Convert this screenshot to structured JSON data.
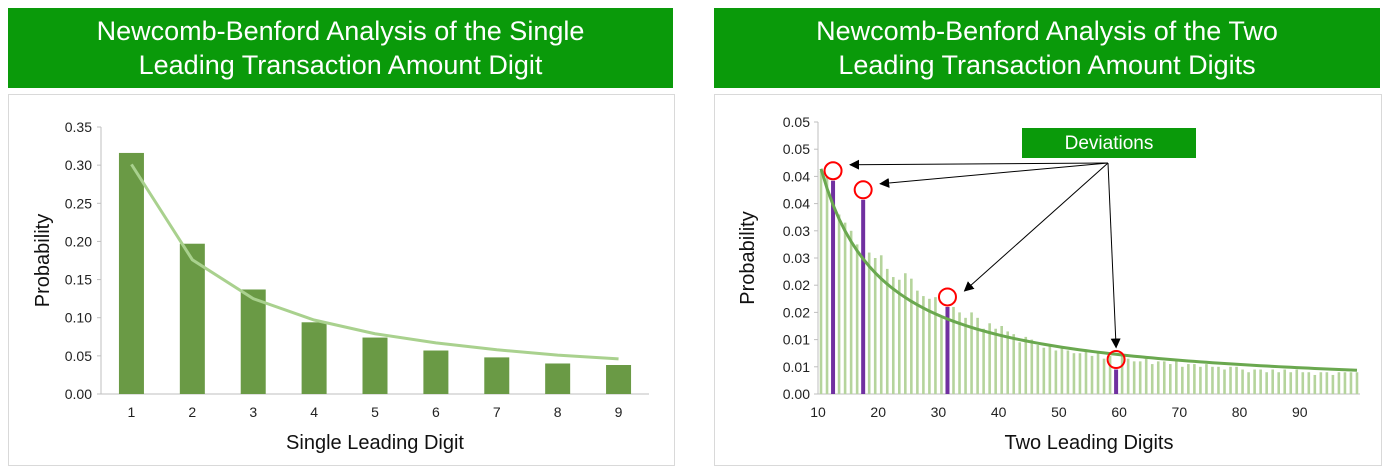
{
  "left_title": [
    "Newcomb-Benford Analysis of the Single",
    "Leading Transaction Amount Digit"
  ],
  "right_title": [
    "Newcomb-Benford Analysis of the Two",
    "Leading Transaction Amount Digits"
  ],
  "colors": {
    "banner": "#0a9a0a",
    "bar_dark": "#6a9a45",
    "bar_light": "#b5d49c",
    "benford_curve_left": "#a9d18e",
    "benford_curve_right": "#6aa84f",
    "deviation_bar": "#7030a0",
    "deviation_circle": "#ff0000"
  },
  "chart_data": [
    {
      "type": "bar",
      "xlabel": "Single Leading Digit",
      "ylabel": "Probability",
      "ylim": [
        0,
        0.35
      ],
      "yticks": [
        "0.00",
        "0.05",
        "0.10",
        "0.15",
        "0.20",
        "0.25",
        "0.30",
        "0.35"
      ],
      "categories": [
        "1",
        "2",
        "3",
        "4",
        "5",
        "6",
        "7",
        "8",
        "9"
      ],
      "series": [
        {
          "kind": "bar",
          "values": [
            0.316,
            0.197,
            0.137,
            0.094,
            0.074,
            0.057,
            0.048,
            0.04,
            0.038
          ]
        },
        {
          "kind": "line",
          "values": [
            0.301,
            0.176,
            0.125,
            0.097,
            0.079,
            0.067,
            0.058,
            0.051,
            0.046
          ]
        }
      ],
      "grid": false,
      "legend": "none"
    },
    {
      "type": "bar",
      "xlabel": "Two Leading Digits",
      "ylabel": "Probability",
      "ylim": [
        0,
        0.05
      ],
      "ytick_values": [
        0,
        0.005,
        0.01,
        0.015,
        0.02,
        0.025,
        0.03,
        0.035,
        0.04,
        0.045,
        0.05
      ],
      "yticks": [
        "0.00",
        "0.01",
        "0.01",
        "0.02",
        "0.02",
        "0.03",
        "0.03",
        "0.04",
        "0.04",
        "0.05",
        "0.05"
      ],
      "xticks": [
        "10",
        "20",
        "30",
        "40",
        "50",
        "60",
        "70",
        "80",
        "90"
      ],
      "x": [
        10,
        11,
        12,
        13,
        14,
        15,
        16,
        17,
        18,
        19,
        20,
        21,
        22,
        23,
        24,
        25,
        26,
        27,
        28,
        29,
        30,
        31,
        32,
        33,
        34,
        35,
        36,
        37,
        38,
        39,
        40,
        41,
        42,
        43,
        44,
        45,
        46,
        47,
        48,
        49,
        50,
        51,
        52,
        53,
        54,
        55,
        56,
        57,
        58,
        59,
        60,
        61,
        62,
        63,
        64,
        65,
        66,
        67,
        68,
        69,
        70,
        71,
        72,
        73,
        74,
        75,
        76,
        77,
        78,
        79,
        80,
        81,
        82,
        83,
        84,
        85,
        86,
        87,
        88,
        89,
        90,
        91,
        92,
        93,
        94,
        95,
        96,
        97,
        98,
        99
      ],
      "series": [
        {
          "kind": "bar",
          "values": [
            0.041,
            0.04,
            0.0392,
            0.033,
            0.0315,
            0.03,
            0.0275,
            0.0357,
            0.026,
            0.025,
            0.0255,
            0.023,
            0.0215,
            0.021,
            0.0222,
            0.0212,
            0.019,
            0.018,
            0.0175,
            0.0178,
            0.014,
            0.016,
            0.016,
            0.015,
            0.014,
            0.015,
            0.014,
            0.012,
            0.013,
            0.012,
            0.0125,
            0.0115,
            0.011,
            0.0095,
            0.0105,
            0.01,
            0.009,
            0.0085,
            0.009,
            0.008,
            0.0085,
            0.008,
            0.0075,
            0.0075,
            0.008,
            0.007,
            0.0075,
            0.0065,
            0.007,
            0.0045,
            0.007,
            0.0065,
            0.006,
            0.006,
            0.0065,
            0.0055,
            0.006,
            0.006,
            0.0055,
            0.006,
            0.005,
            0.0055,
            0.0055,
            0.005,
            0.0055,
            0.005,
            0.005,
            0.0045,
            0.005,
            0.005,
            0.0045,
            0.004,
            0.0045,
            0.0045,
            0.004,
            0.0045,
            0.004,
            0.0045,
            0.004,
            0.0045,
            0.004,
            0.004,
            0.0035,
            0.004,
            0.004,
            0.0035,
            0.004,
            0.004,
            0.004,
            0.004
          ]
        },
        {
          "kind": "line",
          "formula": "log10(1+1/d)"
        }
      ],
      "deviations": [
        {
          "x": 12,
          "value": 0.0392
        },
        {
          "x": 17,
          "value": 0.0357
        },
        {
          "x": 31,
          "value": 0.016
        },
        {
          "x": 59,
          "value": 0.0045
        }
      ],
      "annotation": "Deviations",
      "grid": false,
      "legend": "none"
    }
  ]
}
